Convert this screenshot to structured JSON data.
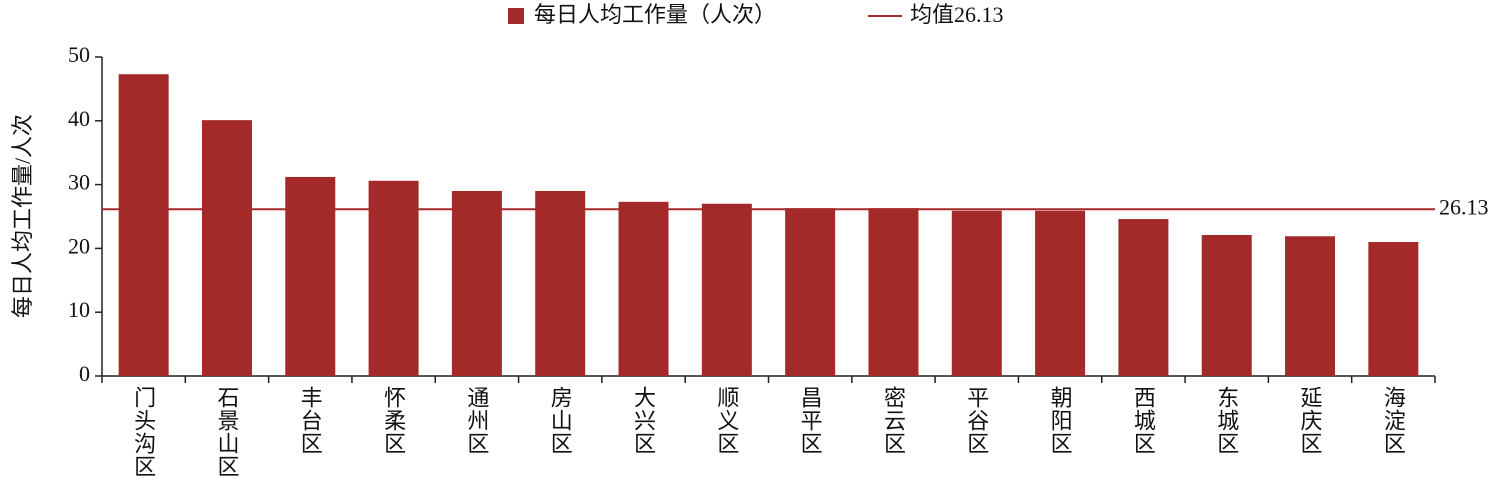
{
  "chart_data": {
    "type": "bar",
    "y_label": "每日人均工作量/人次",
    "categories": [
      "门头沟区",
      "石景山区",
      "丰台区",
      "怀柔区",
      "通州区",
      "房山区",
      "大兴区",
      "顺义区",
      "昌平区",
      "密云区",
      "平谷区",
      "朝阳区",
      "西城区",
      "东城区",
      "延庆区",
      "海淀区"
    ],
    "series": [
      {
        "name": "每日人均工作量（人次）",
        "color": "#a32a29",
        "values": [
          47.3,
          40.1,
          31.2,
          30.6,
          29.0,
          29.0,
          27.3,
          27.0,
          26.3,
          26.3,
          25.9,
          25.9,
          24.6,
          22.1,
          21.9,
          21.0
        ]
      }
    ],
    "mean_line": {
      "name": "均值26.13",
      "value": 26.13,
      "color": "#a32a29"
    },
    "ylim": [
      0,
      50
    ],
    "yticks": [
      0,
      10,
      20,
      30,
      40,
      50
    ]
  }
}
